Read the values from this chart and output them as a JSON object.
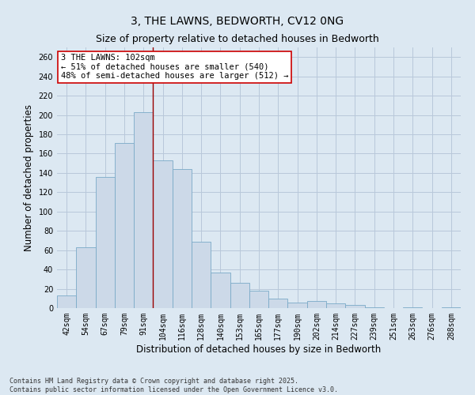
{
  "title_line1": "3, THE LAWNS, BEDWORTH, CV12 0NG",
  "title_line2": "Size of property relative to detached houses in Bedworth",
  "xlabel": "Distribution of detached houses by size in Bedworth",
  "ylabel": "Number of detached properties",
  "categories": [
    "42sqm",
    "54sqm",
    "67sqm",
    "79sqm",
    "91sqm",
    "104sqm",
    "116sqm",
    "128sqm",
    "140sqm",
    "153sqm",
    "165sqm",
    "177sqm",
    "190sqm",
    "202sqm",
    "214sqm",
    "227sqm",
    "239sqm",
    "251sqm",
    "263sqm",
    "276sqm",
    "288sqm"
  ],
  "values": [
    13,
    63,
    136,
    171,
    203,
    153,
    144,
    69,
    37,
    26,
    18,
    10,
    6,
    7,
    5,
    3,
    1,
    0,
    1,
    0,
    1
  ],
  "bar_color": "#ccd9e8",
  "bar_edge_color": "#7aaac8",
  "bar_edge_width": 0.6,
  "grid_color": "#b8c8da",
  "background_color": "#dce8f2",
  "vline_color": "#990000",
  "vline_x_index": 4.5,
  "annotation_text": "3 THE LAWNS: 102sqm\n← 51% of detached houses are smaller (540)\n48% of semi-detached houses are larger (512) →",
  "annotation_box_color": "#ffffff",
  "annotation_box_edge": "#cc0000",
  "ylim": [
    0,
    270
  ],
  "yticks": [
    0,
    20,
    40,
    60,
    80,
    100,
    120,
    140,
    160,
    180,
    200,
    220,
    240,
    260
  ],
  "footer_line1": "Contains HM Land Registry data © Crown copyright and database right 2025.",
  "footer_line2": "Contains public sector information licensed under the Open Government Licence v3.0.",
  "title_fontsize": 10,
  "subtitle_fontsize": 9,
  "tick_fontsize": 7,
  "label_fontsize": 8.5,
  "annotation_fontsize": 7.5,
  "footer_fontsize": 6
}
